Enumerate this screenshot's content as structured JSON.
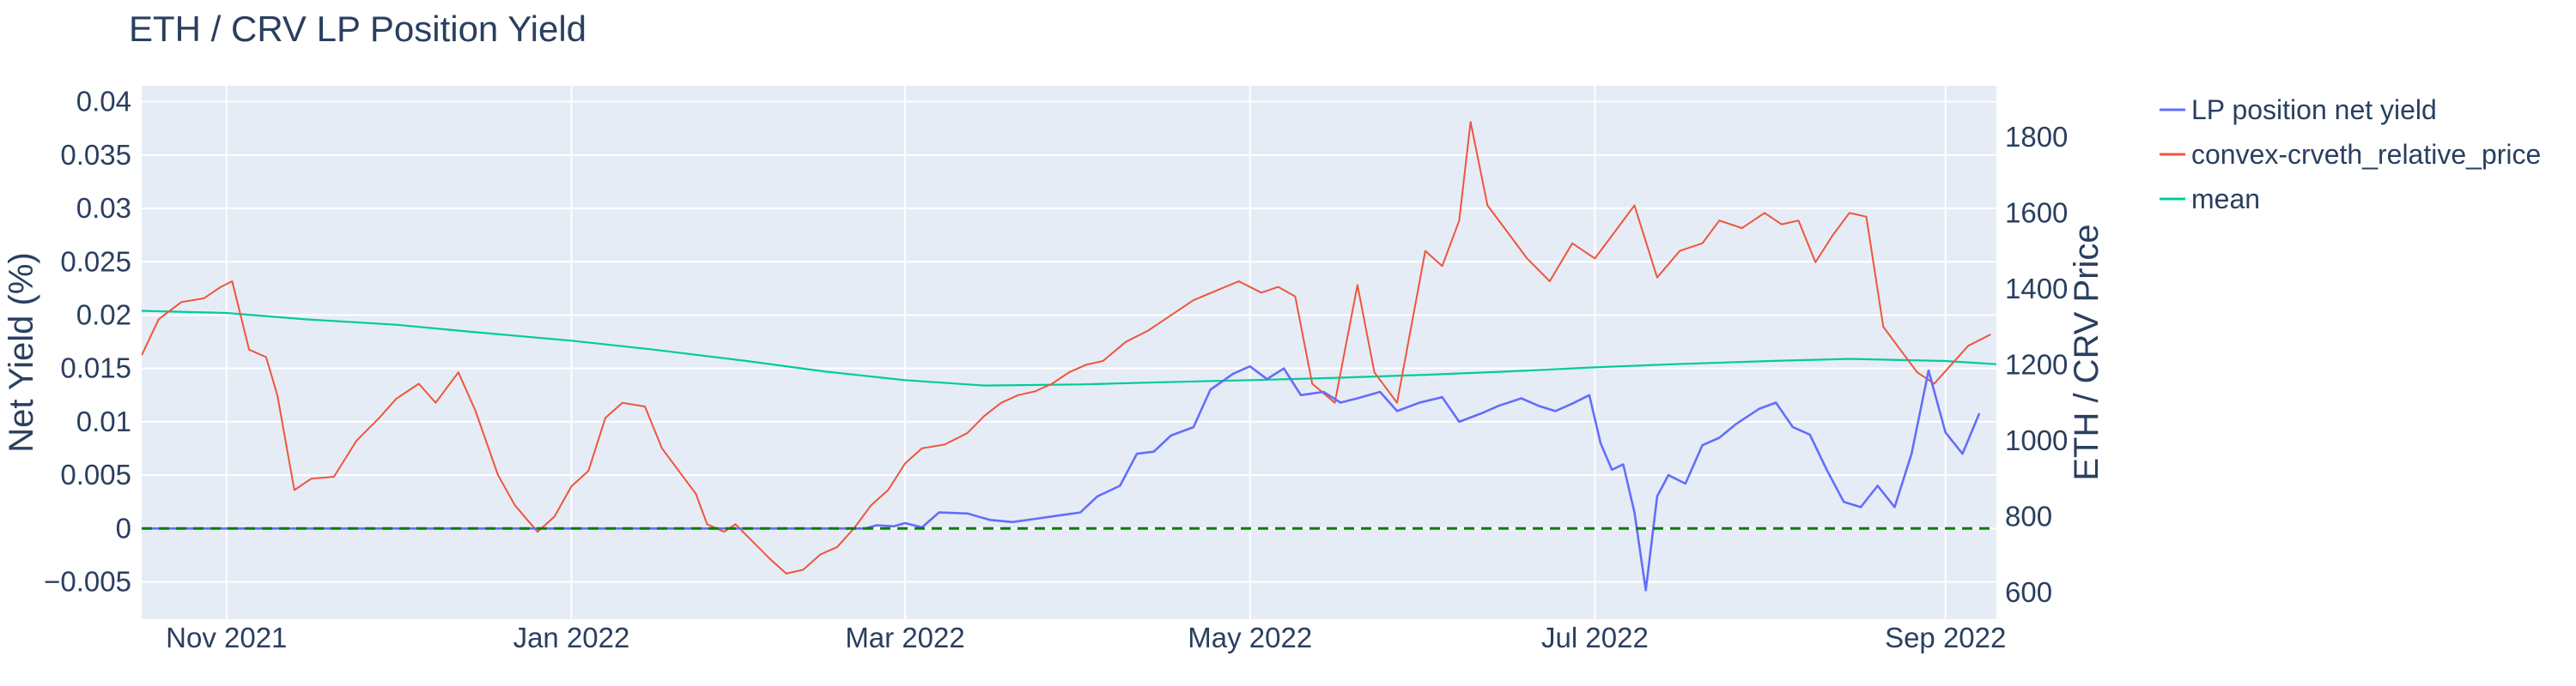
{
  "colors": {
    "plot_bg": "#e5ecf6",
    "grid": "#ffffff",
    "text": "#2a3f5f",
    "net_yield": "#636efa",
    "relative_price": "#ef553b",
    "mean": "#00cc96",
    "zero_line": "#008000"
  },
  "chart_data": {
    "type": "line",
    "title": "ETH / CRV LP Position Yield",
    "xlabel": "",
    "ylabel": "Net Yield (%)",
    "y2label": "ETH / CRV Price",
    "xlim": [
      "2021-10-17",
      "2022-09-10"
    ],
    "ylim": [
      -0.0085,
      0.0415
    ],
    "y2lim": [
      530,
      1935
    ],
    "x_ticks": [
      {
        "date": "2021-11-01",
        "label": "Nov 2021"
      },
      {
        "date": "2022-01-01",
        "label": "Jan 2022"
      },
      {
        "date": "2022-03-01",
        "label": "Mar 2022"
      },
      {
        "date": "2022-05-01",
        "label": "May 2022"
      },
      {
        "date": "2022-07-01",
        "label": "Jul 2022"
      },
      {
        "date": "2022-09-01",
        "label": "Sep 2022"
      }
    ],
    "y_ticks": [
      {
        "value": 0.04,
        "label": "0.04"
      },
      {
        "value": 0.035,
        "label": "0.035"
      },
      {
        "value": 0.03,
        "label": "0.03"
      },
      {
        "value": 0.025,
        "label": "0.025"
      },
      {
        "value": 0.02,
        "label": "0.02"
      },
      {
        "value": 0.015,
        "label": "0.015"
      },
      {
        "value": 0.01,
        "label": "0.01"
      },
      {
        "value": 0.005,
        "label": "0.005"
      },
      {
        "value": 0,
        "label": "0"
      },
      {
        "value": -0.005,
        "label": "−0.005"
      }
    ],
    "y2_ticks": [
      {
        "value": 1800,
        "label": "1800"
      },
      {
        "value": 1600,
        "label": "1600"
      },
      {
        "value": 1400,
        "label": "1400"
      },
      {
        "value": 1200,
        "label": "1200"
      },
      {
        "value": 1000,
        "label": "1000"
      },
      {
        "value": 800,
        "label": "800"
      },
      {
        "value": 600,
        "label": "600"
      }
    ],
    "hline": {
      "y": 0,
      "style": "dash"
    },
    "legend_position": "right",
    "grid": true,
    "series": [
      {
        "name": "LP position net yield",
        "axis": "y",
        "points": [
          [
            "2021-10-17",
            0
          ],
          [
            "2022-02-22",
            0
          ],
          [
            "2022-02-24",
            0.0003
          ],
          [
            "2022-02-27",
            0.0002
          ],
          [
            "2022-03-01",
            0.0005
          ],
          [
            "2022-03-04",
            0.0001
          ],
          [
            "2022-03-07",
            0.0015
          ],
          [
            "2022-03-12",
            0.0014
          ],
          [
            "2022-03-16",
            0.0008
          ],
          [
            "2022-03-20",
            0.0006
          ],
          [
            "2022-03-24",
            0.0009
          ],
          [
            "2022-03-28",
            0.0012
          ],
          [
            "2022-04-01",
            0.0015
          ],
          [
            "2022-04-04",
            0.003
          ],
          [
            "2022-04-08",
            0.004
          ],
          [
            "2022-04-11",
            0.007
          ],
          [
            "2022-04-14",
            0.0072
          ],
          [
            "2022-04-17",
            0.0087
          ],
          [
            "2022-04-21",
            0.0095
          ],
          [
            "2022-04-24",
            0.013
          ],
          [
            "2022-04-28",
            0.0145
          ],
          [
            "2022-05-01",
            0.0152
          ],
          [
            "2022-05-04",
            0.014
          ],
          [
            "2022-05-07",
            0.015
          ],
          [
            "2022-05-10",
            0.0125
          ],
          [
            "2022-05-14",
            0.0128
          ],
          [
            "2022-05-17",
            0.0118
          ],
          [
            "2022-05-20",
            0.0122
          ],
          [
            "2022-05-24",
            0.0128
          ],
          [
            "2022-05-27",
            0.011
          ],
          [
            "2022-05-31",
            0.0118
          ],
          [
            "2022-06-04",
            0.0123
          ],
          [
            "2022-06-07",
            0.01
          ],
          [
            "2022-06-11",
            0.0108
          ],
          [
            "2022-06-14",
            0.0115
          ],
          [
            "2022-06-18",
            0.0122
          ],
          [
            "2022-06-21",
            0.0115
          ],
          [
            "2022-06-24",
            0.011
          ],
          [
            "2022-06-27",
            0.0117
          ],
          [
            "2022-06-30",
            0.0125
          ],
          [
            "2022-07-02",
            0.008
          ],
          [
            "2022-07-04",
            0.0055
          ],
          [
            "2022-07-06",
            0.006
          ],
          [
            "2022-07-08",
            0.0015
          ],
          [
            "2022-07-10",
            -0.0058
          ],
          [
            "2022-07-12",
            0.003
          ],
          [
            "2022-07-14",
            0.005
          ],
          [
            "2022-07-17",
            0.0042
          ],
          [
            "2022-07-20",
            0.0078
          ],
          [
            "2022-07-23",
            0.0085
          ],
          [
            "2022-07-26",
            0.0098
          ],
          [
            "2022-07-30",
            0.0112
          ],
          [
            "2022-08-02",
            0.0118
          ],
          [
            "2022-08-05",
            0.0095
          ],
          [
            "2022-08-08",
            0.0088
          ],
          [
            "2022-08-11",
            0.0055
          ],
          [
            "2022-08-14",
            0.0025
          ],
          [
            "2022-08-17",
            0.002
          ],
          [
            "2022-08-20",
            0.004
          ],
          [
            "2022-08-23",
            0.002
          ],
          [
            "2022-08-26",
            0.007
          ],
          [
            "2022-08-29",
            0.0148
          ],
          [
            "2022-09-01",
            0.009
          ],
          [
            "2022-09-04",
            0.007
          ],
          [
            "2022-09-07",
            0.0108
          ]
        ]
      },
      {
        "name": "convex-crveth_relative_price",
        "axis": "y2",
        "points": [
          [
            "2021-10-17",
            1225
          ],
          [
            "2021-10-20",
            1320
          ],
          [
            "2021-10-24",
            1365
          ],
          [
            "2021-10-28",
            1375
          ],
          [
            "2021-10-31",
            1405
          ],
          [
            "2021-11-02",
            1420
          ],
          [
            "2021-11-05",
            1240
          ],
          [
            "2021-11-08",
            1220
          ],
          [
            "2021-11-10",
            1120
          ],
          [
            "2021-11-13",
            870
          ],
          [
            "2021-11-16",
            900
          ],
          [
            "2021-11-20",
            905
          ],
          [
            "2021-11-24",
            1000
          ],
          [
            "2021-11-28",
            1060
          ],
          [
            "2021-12-01",
            1110
          ],
          [
            "2021-12-05",
            1150
          ],
          [
            "2021-12-08",
            1100
          ],
          [
            "2021-12-12",
            1180
          ],
          [
            "2021-12-15",
            1080
          ],
          [
            "2021-12-19",
            910
          ],
          [
            "2021-12-22",
            830
          ],
          [
            "2021-12-26",
            760
          ],
          [
            "2021-12-29",
            800
          ],
          [
            "2022-01-01",
            880
          ],
          [
            "2022-01-04",
            920
          ],
          [
            "2022-01-07",
            1060
          ],
          [
            "2022-01-10",
            1100
          ],
          [
            "2022-01-14",
            1090
          ],
          [
            "2022-01-17",
            980
          ],
          [
            "2022-01-20",
            920
          ],
          [
            "2022-01-23",
            860
          ],
          [
            "2022-01-25",
            780
          ],
          [
            "2022-01-28",
            760
          ],
          [
            "2022-01-30",
            780
          ],
          [
            "2022-02-02",
            735
          ],
          [
            "2022-02-05",
            690
          ],
          [
            "2022-02-08",
            650
          ],
          [
            "2022-02-11",
            660
          ],
          [
            "2022-02-14",
            700
          ],
          [
            "2022-02-17",
            720
          ],
          [
            "2022-02-20",
            770
          ],
          [
            "2022-02-23",
            830
          ],
          [
            "2022-02-26",
            870
          ],
          [
            "2022-03-01",
            940
          ],
          [
            "2022-03-04",
            980
          ],
          [
            "2022-03-08",
            990
          ],
          [
            "2022-03-12",
            1020
          ],
          [
            "2022-03-15",
            1065
          ],
          [
            "2022-03-18",
            1100
          ],
          [
            "2022-03-21",
            1120
          ],
          [
            "2022-03-24",
            1130
          ],
          [
            "2022-03-27",
            1150
          ],
          [
            "2022-03-30",
            1180
          ],
          [
            "2022-04-02",
            1200
          ],
          [
            "2022-04-05",
            1210
          ],
          [
            "2022-04-09",
            1260
          ],
          [
            "2022-04-13",
            1290
          ],
          [
            "2022-04-17",
            1330
          ],
          [
            "2022-04-21",
            1370
          ],
          [
            "2022-04-25",
            1395
          ],
          [
            "2022-04-29",
            1420
          ],
          [
            "2022-05-03",
            1390
          ],
          [
            "2022-05-06",
            1405
          ],
          [
            "2022-05-09",
            1380
          ],
          [
            "2022-05-12",
            1150
          ],
          [
            "2022-05-16",
            1100
          ],
          [
            "2022-05-20",
            1410
          ],
          [
            "2022-05-23",
            1180
          ],
          [
            "2022-05-27",
            1100
          ],
          [
            "2022-06-01",
            1500
          ],
          [
            "2022-06-04",
            1460
          ],
          [
            "2022-06-07",
            1580
          ],
          [
            "2022-06-09",
            1840
          ],
          [
            "2022-06-12",
            1620
          ],
          [
            "2022-06-15",
            1560
          ],
          [
            "2022-06-19",
            1480
          ],
          [
            "2022-06-23",
            1420
          ],
          [
            "2022-06-27",
            1520
          ],
          [
            "2022-07-01",
            1480
          ],
          [
            "2022-07-05",
            1560
          ],
          [
            "2022-07-08",
            1620
          ],
          [
            "2022-07-12",
            1430
          ],
          [
            "2022-07-16",
            1500
          ],
          [
            "2022-07-20",
            1520
          ],
          [
            "2022-07-23",
            1580
          ],
          [
            "2022-07-27",
            1560
          ],
          [
            "2022-07-31",
            1600
          ],
          [
            "2022-08-03",
            1570
          ],
          [
            "2022-08-06",
            1580
          ],
          [
            "2022-08-09",
            1470
          ],
          [
            "2022-08-12",
            1540
          ],
          [
            "2022-08-15",
            1600
          ],
          [
            "2022-08-18",
            1590
          ],
          [
            "2022-08-21",
            1300
          ],
          [
            "2022-08-24",
            1240
          ],
          [
            "2022-08-27",
            1180
          ],
          [
            "2022-08-30",
            1150
          ],
          [
            "2022-09-02",
            1200
          ],
          [
            "2022-09-05",
            1250
          ],
          [
            "2022-09-09",
            1280
          ]
        ]
      },
      {
        "name": "mean",
        "axis": "y",
        "points": [
          [
            "2021-10-17",
            0.0204
          ],
          [
            "2021-11-01",
            0.0202
          ],
          [
            "2021-11-15",
            0.0196
          ],
          [
            "2021-12-01",
            0.0191
          ],
          [
            "2021-12-15",
            0.0184
          ],
          [
            "2022-01-01",
            0.0176
          ],
          [
            "2022-01-15",
            0.0168
          ],
          [
            "2022-02-01",
            0.0157
          ],
          [
            "2022-02-15",
            0.0147
          ],
          [
            "2022-03-01",
            0.0139
          ],
          [
            "2022-03-15",
            0.0134
          ],
          [
            "2022-04-01",
            0.0135
          ],
          [
            "2022-04-15",
            0.0137
          ],
          [
            "2022-05-01",
            0.0139
          ],
          [
            "2022-05-15",
            0.0141
          ],
          [
            "2022-06-01",
            0.0144
          ],
          [
            "2022-06-15",
            0.0147
          ],
          [
            "2022-07-01",
            0.0151
          ],
          [
            "2022-07-15",
            0.0154
          ],
          [
            "2022-08-01",
            0.0157
          ],
          [
            "2022-08-15",
            0.0159
          ],
          [
            "2022-09-01",
            0.0157
          ],
          [
            "2022-09-10",
            0.0154
          ]
        ]
      }
    ]
  }
}
